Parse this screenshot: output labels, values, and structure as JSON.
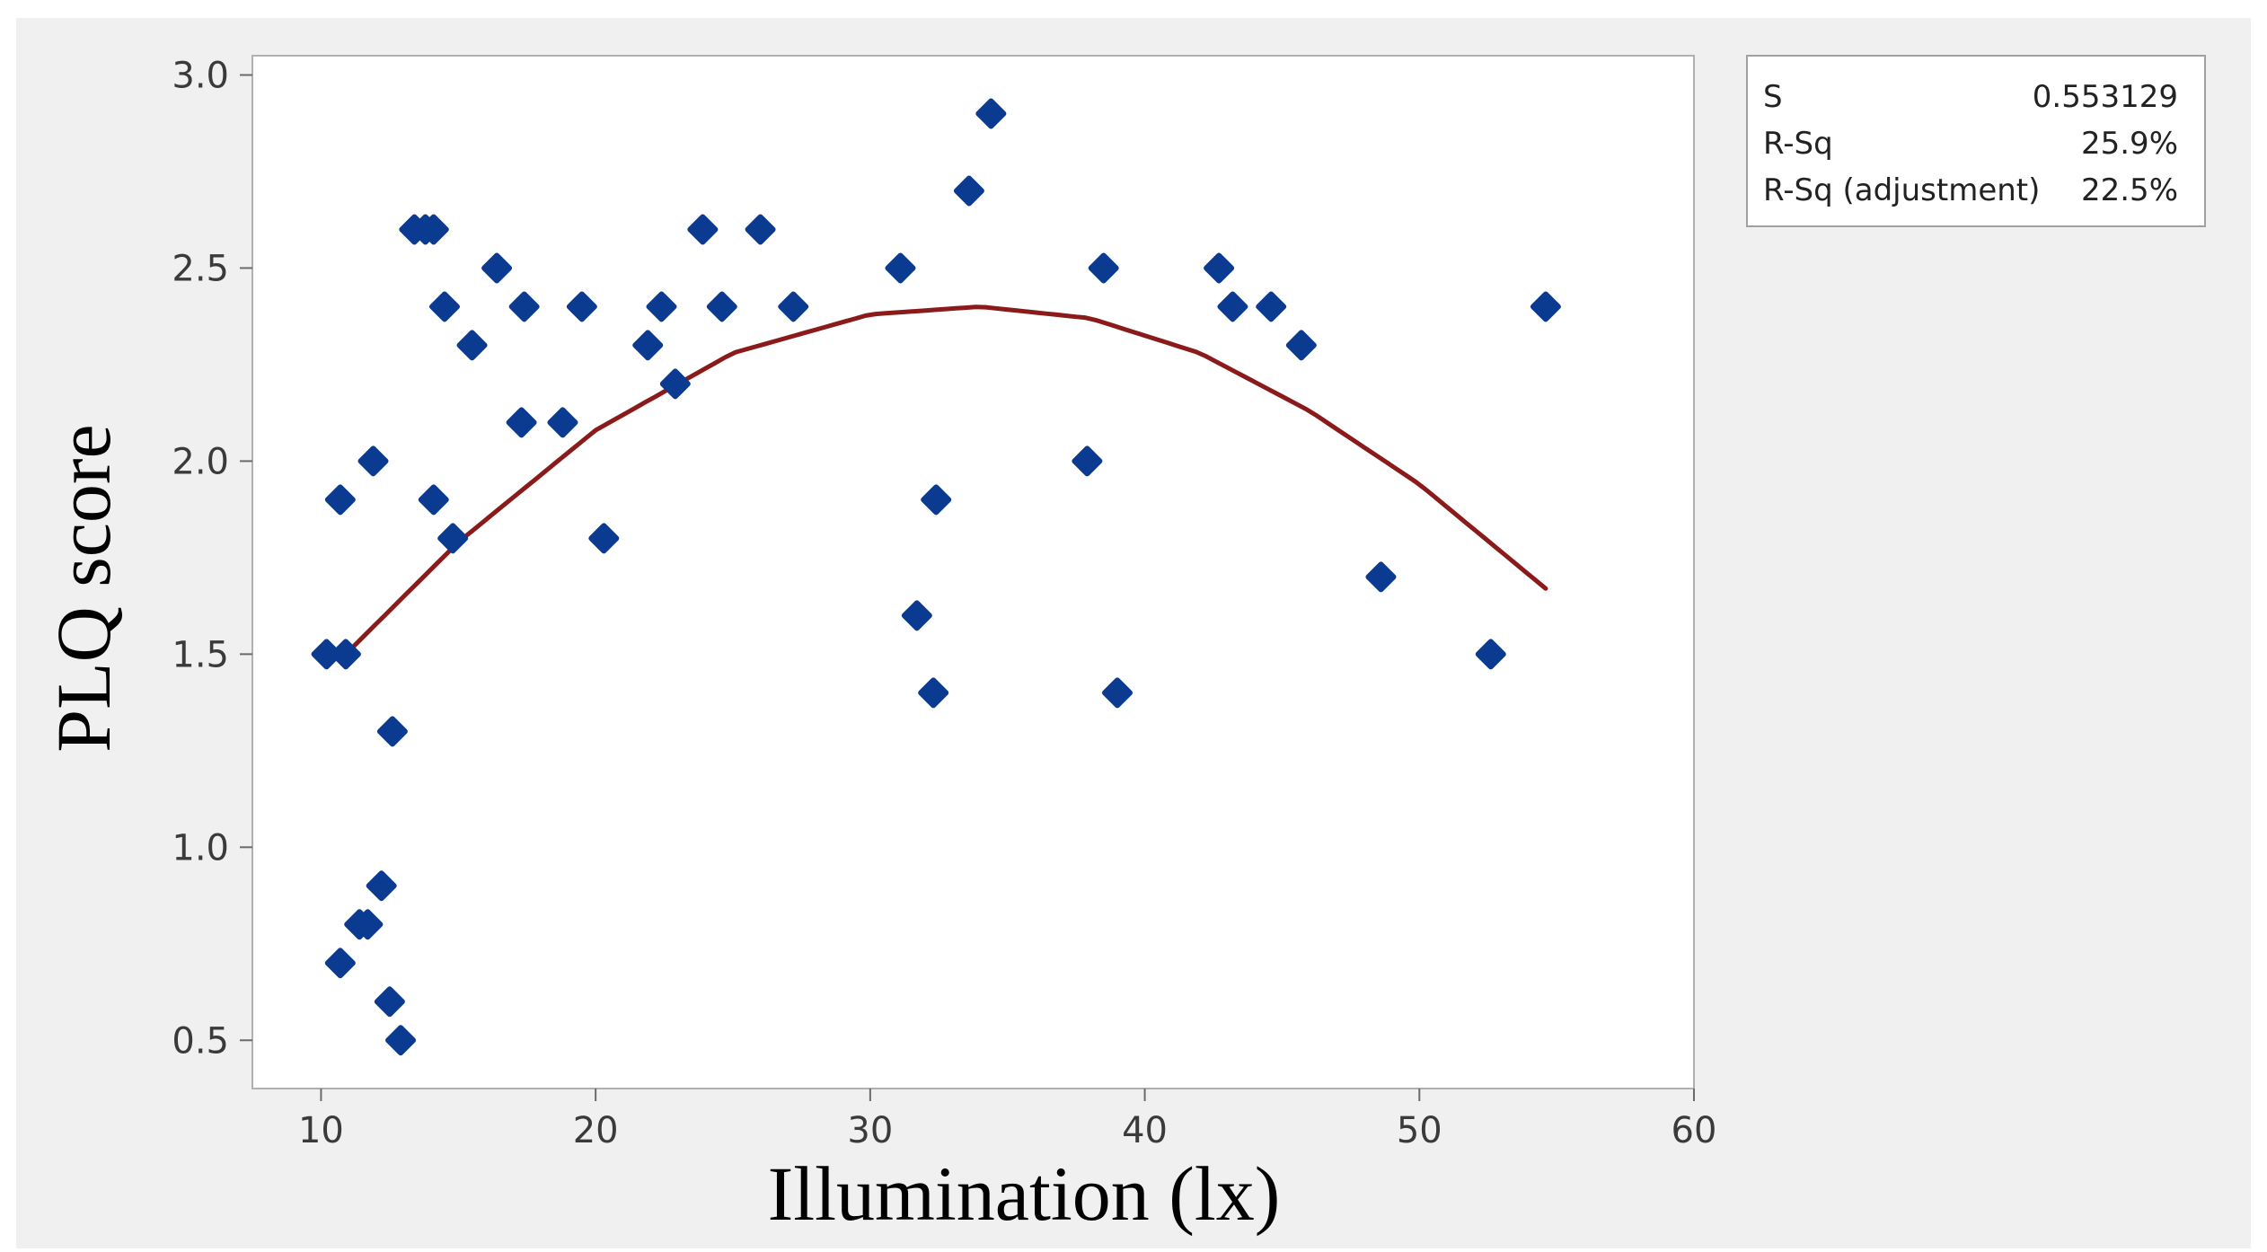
{
  "chart_data": {
    "type": "scatter",
    "title": "",
    "xlabel": "Illumination (lx)",
    "ylabel": "PLQ score",
    "xlim": [
      7.5,
      60
    ],
    "ylim": [
      0.375,
      3.05
    ],
    "x_ticks": [
      10,
      20,
      30,
      40,
      50,
      60
    ],
    "x_tick_labels": [
      "10",
      "20",
      "30",
      "40",
      "50",
      "60"
    ],
    "y_ticks": [
      0.5,
      1.0,
      1.5,
      2.0,
      2.5,
      3.0
    ],
    "y_tick_labels": [
      "0.5",
      "1.0",
      "1.5",
      "2.0",
      "2.5",
      "3.0"
    ],
    "grid": false,
    "series": [
      {
        "type": "scatter",
        "color": "#0b3b91",
        "points": [
          {
            "x": 10.2,
            "y": 1.5
          },
          {
            "x": 10.9,
            "y": 1.5
          },
          {
            "x": 10.7,
            "y": 1.9
          },
          {
            "x": 10.7,
            "y": 0.7
          },
          {
            "x": 11.4,
            "y": 0.8
          },
          {
            "x": 11.7,
            "y": 0.8
          },
          {
            "x": 11.9,
            "y": 2.0
          },
          {
            "x": 12.2,
            "y": 0.9
          },
          {
            "x": 12.5,
            "y": 0.6
          },
          {
            "x": 12.6,
            "y": 1.3
          },
          {
            "x": 12.9,
            "y": 0.5
          },
          {
            "x": 13.4,
            "y": 2.6
          },
          {
            "x": 13.8,
            "y": 2.6
          },
          {
            "x": 14.1,
            "y": 2.6
          },
          {
            "x": 14.1,
            "y": 1.9
          },
          {
            "x": 14.5,
            "y": 2.4
          },
          {
            "x": 14.8,
            "y": 1.8
          },
          {
            "x": 15.5,
            "y": 2.3
          },
          {
            "x": 16.4,
            "y": 2.5
          },
          {
            "x": 17.3,
            "y": 2.1
          },
          {
            "x": 17.4,
            "y": 2.4
          },
          {
            "x": 18.8,
            "y": 2.1
          },
          {
            "x": 19.5,
            "y": 2.4
          },
          {
            "x": 20.3,
            "y": 1.8
          },
          {
            "x": 21.9,
            "y": 2.3
          },
          {
            "x": 22.4,
            "y": 2.4
          },
          {
            "x": 22.9,
            "y": 2.2
          },
          {
            "x": 23.9,
            "y": 2.6
          },
          {
            "x": 24.6,
            "y": 2.4
          },
          {
            "x": 26.0,
            "y": 2.6
          },
          {
            "x": 27.2,
            "y": 2.4
          },
          {
            "x": 31.1,
            "y": 2.5
          },
          {
            "x": 31.7,
            "y": 1.6
          },
          {
            "x": 32.3,
            "y": 1.4
          },
          {
            "x": 32.4,
            "y": 1.9
          },
          {
            "x": 33.6,
            "y": 2.7
          },
          {
            "x": 34.4,
            "y": 2.9
          },
          {
            "x": 37.9,
            "y": 2.0
          },
          {
            "x": 38.5,
            "y": 2.5
          },
          {
            "x": 39.0,
            "y": 1.4
          },
          {
            "x": 42.7,
            "y": 2.5
          },
          {
            "x": 43.2,
            "y": 2.4
          },
          {
            "x": 44.6,
            "y": 2.4
          },
          {
            "x": 45.7,
            "y": 2.3
          },
          {
            "x": 48.6,
            "y": 1.7
          },
          {
            "x": 52.6,
            "y": 1.5
          },
          {
            "x": 54.6,
            "y": 2.4
          }
        ]
      },
      {
        "type": "line",
        "color": "#8b1a1a",
        "fit": "quadratic",
        "x_range": [
          10.9,
          54.6
        ],
        "curve_points": [
          {
            "x": 10.9,
            "y": 1.5
          },
          {
            "x": 15,
            "y": 1.79
          },
          {
            "x": 20,
            "y": 2.08
          },
          {
            "x": 25,
            "y": 2.28
          },
          {
            "x": 30,
            "y": 2.38
          },
          {
            "x": 34,
            "y": 2.4
          },
          {
            "x": 38,
            "y": 2.37
          },
          {
            "x": 42,
            "y": 2.28
          },
          {
            "x": 46,
            "y": 2.13
          },
          {
            "x": 50,
            "y": 1.94
          },
          {
            "x": 54.6,
            "y": 1.67
          }
        ]
      }
    ],
    "stats": [
      {
        "label": "S",
        "value": "0.553129"
      },
      {
        "label": "R-Sq",
        "value": "25.9%"
      },
      {
        "label": "R-Sq (adjustment)",
        "value": "22.5%"
      }
    ]
  },
  "colors": {
    "outer_background": "#f0f0f0",
    "plot_background": "#ffffff",
    "frame": "#b0b0b0",
    "marker": "#0b3b91",
    "fit_line": "#8b1a1a",
    "tick_label": "#3a3a3a"
  }
}
